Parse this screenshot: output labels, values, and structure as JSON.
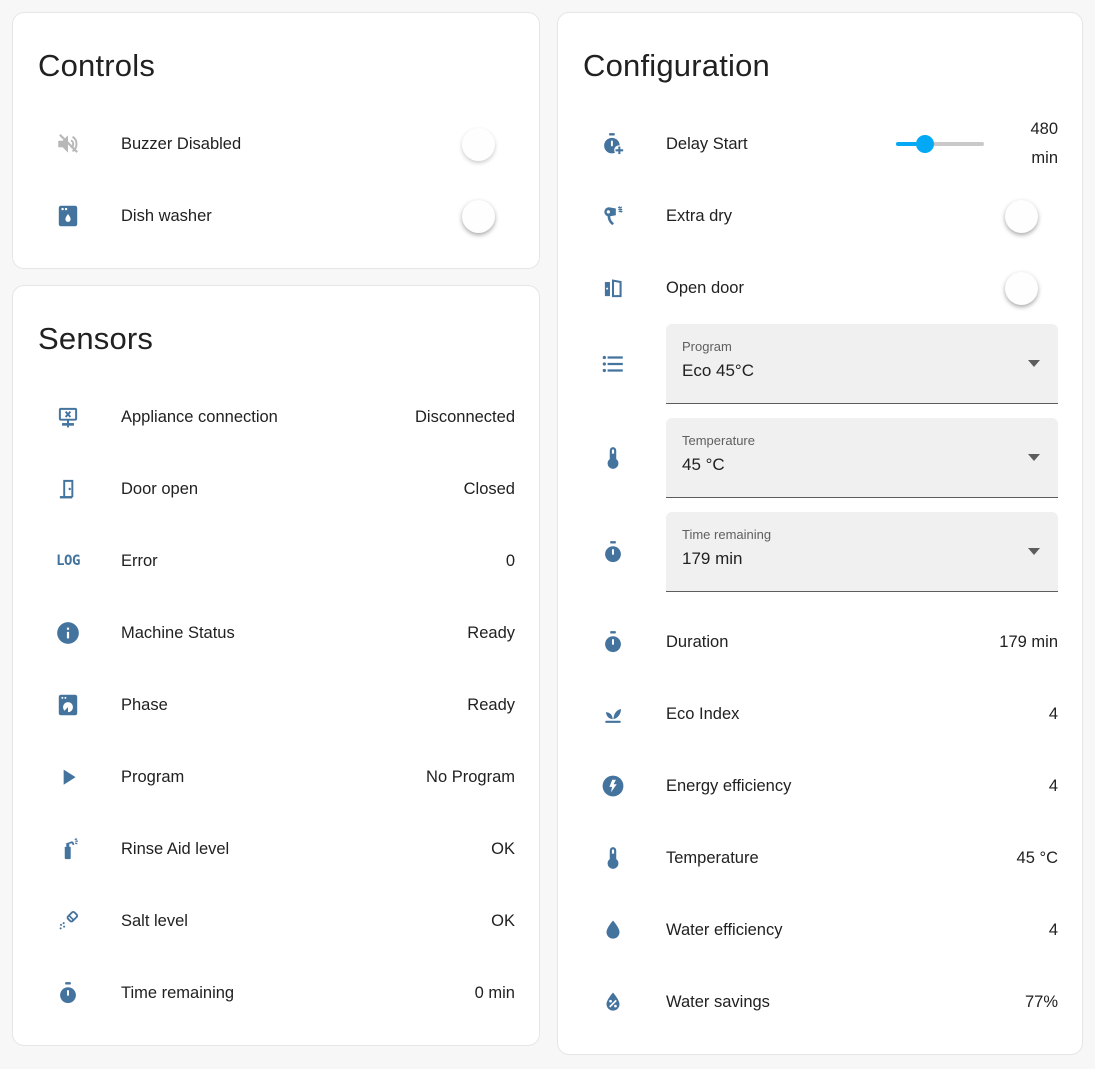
{
  "colors": {
    "accent": "#03a9f4",
    "icon": "#44739e",
    "icon_disabled": "#b8b8b8",
    "background": "#f7f7f7",
    "card": "#ffffff"
  },
  "controls": {
    "title": "Controls",
    "items": [
      {
        "label": "Buzzer Disabled",
        "icon": "volume-off-icon",
        "state": "off",
        "disabled": true
      },
      {
        "label": "Dish washer",
        "icon": "dishwasher-icon",
        "state": "off",
        "disabled": false
      }
    ]
  },
  "sensors": {
    "title": "Sensors",
    "items": [
      {
        "label": "Appliance connection",
        "value": "Disconnected",
        "icon": "network-off-icon"
      },
      {
        "label": "Door open",
        "value": "Closed",
        "icon": "door-icon"
      },
      {
        "label": "Error",
        "value": "0",
        "icon": "math-log-icon",
        "icon_text": "LOG"
      },
      {
        "label": "Machine Status",
        "value": "Ready",
        "icon": "information-icon"
      },
      {
        "label": "Phase",
        "value": "Ready",
        "icon": "washing-machine-icon"
      },
      {
        "label": "Program",
        "value": "No Program",
        "icon": "play-icon"
      },
      {
        "label": "Rinse Aid level",
        "value": "OK",
        "icon": "spray-bottle-icon"
      },
      {
        "label": "Salt level",
        "value": "OK",
        "icon": "shaker-icon"
      },
      {
        "label": "Time remaining",
        "value": "0 min",
        "icon": "timer-icon"
      }
    ]
  },
  "configuration": {
    "title": "Configuration",
    "delay_start": {
      "label": "Delay Start",
      "value": "480",
      "unit": "min",
      "slider_percent": 33,
      "icon": "timer-plus-icon"
    },
    "toggles": [
      {
        "label": "Extra dry",
        "icon": "hair-dryer-icon",
        "state": "off"
      },
      {
        "label": "Open door",
        "icon": "door-open-icon",
        "state": "off"
      }
    ],
    "selects": [
      {
        "label": "Program",
        "value": "Eco 45°C",
        "icon": "list-icon"
      },
      {
        "label": "Temperature",
        "value": "45 °C",
        "icon": "thermometer-icon"
      },
      {
        "label": "Time remaining",
        "value": "179 min",
        "icon": "timer-icon"
      }
    ],
    "stats": [
      {
        "label": "Duration",
        "value": "179 min",
        "icon": "timer-icon"
      },
      {
        "label": "Eco Index",
        "value": "4",
        "icon": "sprout-icon"
      },
      {
        "label": "Energy efficiency",
        "value": "4",
        "icon": "lightning-bolt-circle-icon"
      },
      {
        "label": "Temperature",
        "value": "45 °C",
        "icon": "thermometer-icon"
      },
      {
        "label": "Water efficiency",
        "value": "4",
        "icon": "water-icon"
      },
      {
        "label": "Water savings",
        "value": "77%",
        "icon": "water-percent-icon"
      }
    ]
  }
}
